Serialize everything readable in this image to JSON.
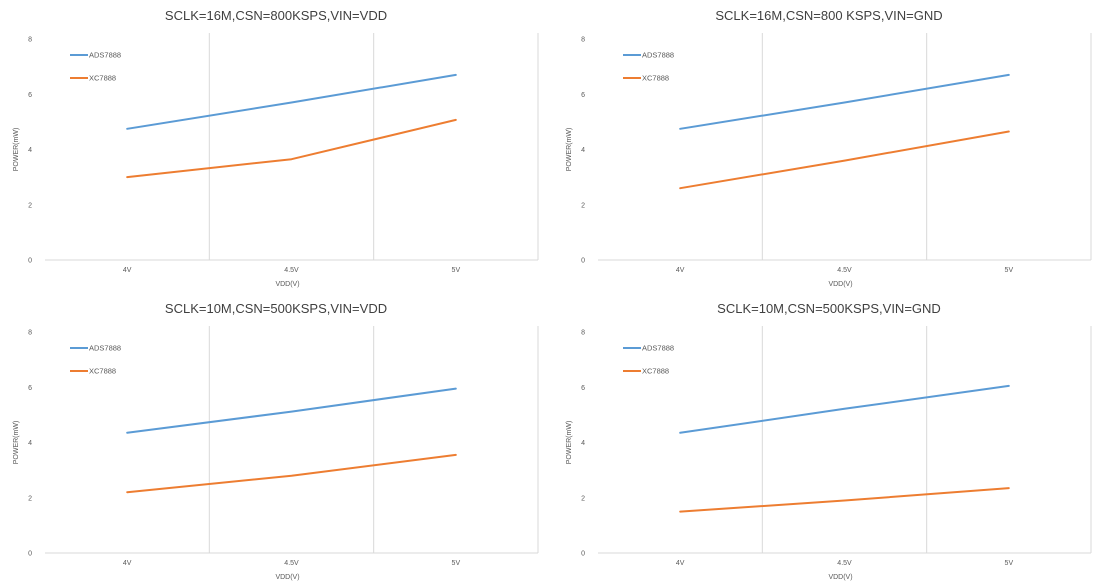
{
  "colors": {
    "ads7888": "#5b9bd5",
    "xc7888": "#ed7d31",
    "gridline": "#d9d9d9",
    "text": "#595959",
    "title": "#404040"
  },
  "chart_data": [
    {
      "type": "line",
      "title": "SCLK=16M,CSN=800KSPS,VIN=VDD",
      "xlabel": "VDD(V)",
      "ylabel": "POWER(mW)",
      "categories": [
        "4V",
        "4.5V",
        "5V"
      ],
      "ylim": [
        0,
        8
      ],
      "yticks": [
        "0",
        "2",
        "4",
        "6",
        "8"
      ],
      "grid": "vertical",
      "legend": "top-left",
      "series": [
        {
          "name": "ADS7888",
          "values": [
            4.75,
            5.7,
            6.7
          ],
          "color": "#5b9bd5"
        },
        {
          "name": "XC7888",
          "values": [
            3.0,
            3.65,
            5.07
          ],
          "color": "#ed7d31"
        }
      ]
    },
    {
      "type": "line",
      "title": "SCLK=16M,CSN=800 KSPS,VIN=GND",
      "xlabel": "VDD(V)",
      "ylabel": "POWER(mW)",
      "categories": [
        "4V",
        "4.5V",
        "5V"
      ],
      "ylim": [
        0,
        8
      ],
      "yticks": [
        "0",
        "2",
        "4",
        "6",
        "8"
      ],
      "grid": "vertical",
      "legend": "top-left",
      "series": [
        {
          "name": "ADS7888",
          "values": [
            4.75,
            5.7,
            6.7
          ],
          "color": "#5b9bd5"
        },
        {
          "name": "XC7888",
          "values": [
            2.6,
            3.6,
            4.65
          ],
          "color": "#ed7d31"
        }
      ]
    },
    {
      "type": "line",
      "title": "SCLK=10M,CSN=500KSPS,VIN=VDD",
      "xlabel": "VDD(V)",
      "ylabel": "POWER(mW)",
      "categories": [
        "4V",
        "4.5V",
        "5V"
      ],
      "ylim": [
        0,
        8
      ],
      "yticks": [
        "0",
        "2",
        "4",
        "6",
        "8"
      ],
      "grid": "vertical",
      "legend": "top-left",
      "series": [
        {
          "name": "ADS7888",
          "values": [
            4.35,
            5.12,
            5.95
          ],
          "color": "#5b9bd5"
        },
        {
          "name": "XC7888",
          "values": [
            2.2,
            2.8,
            3.55
          ],
          "color": "#ed7d31"
        }
      ]
    },
    {
      "type": "line",
      "title": "SCLK=10M,CSN=500KSPS,VIN=GND",
      "xlabel": "VDD(V)",
      "ylabel": "POWER(mW)",
      "categories": [
        "4V",
        "4.5V",
        "5V"
      ],
      "ylim": [
        0,
        8
      ],
      "yticks": [
        "0",
        "2",
        "4",
        "6",
        "8"
      ],
      "grid": "vertical",
      "legend": "top-left",
      "series": [
        {
          "name": "ADS7888",
          "values": [
            4.35,
            5.22,
            6.05
          ],
          "color": "#5b9bd5"
        },
        {
          "name": "XC7888",
          "values": [
            1.5,
            1.9,
            2.35
          ],
          "color": "#ed7d31"
        }
      ]
    }
  ]
}
